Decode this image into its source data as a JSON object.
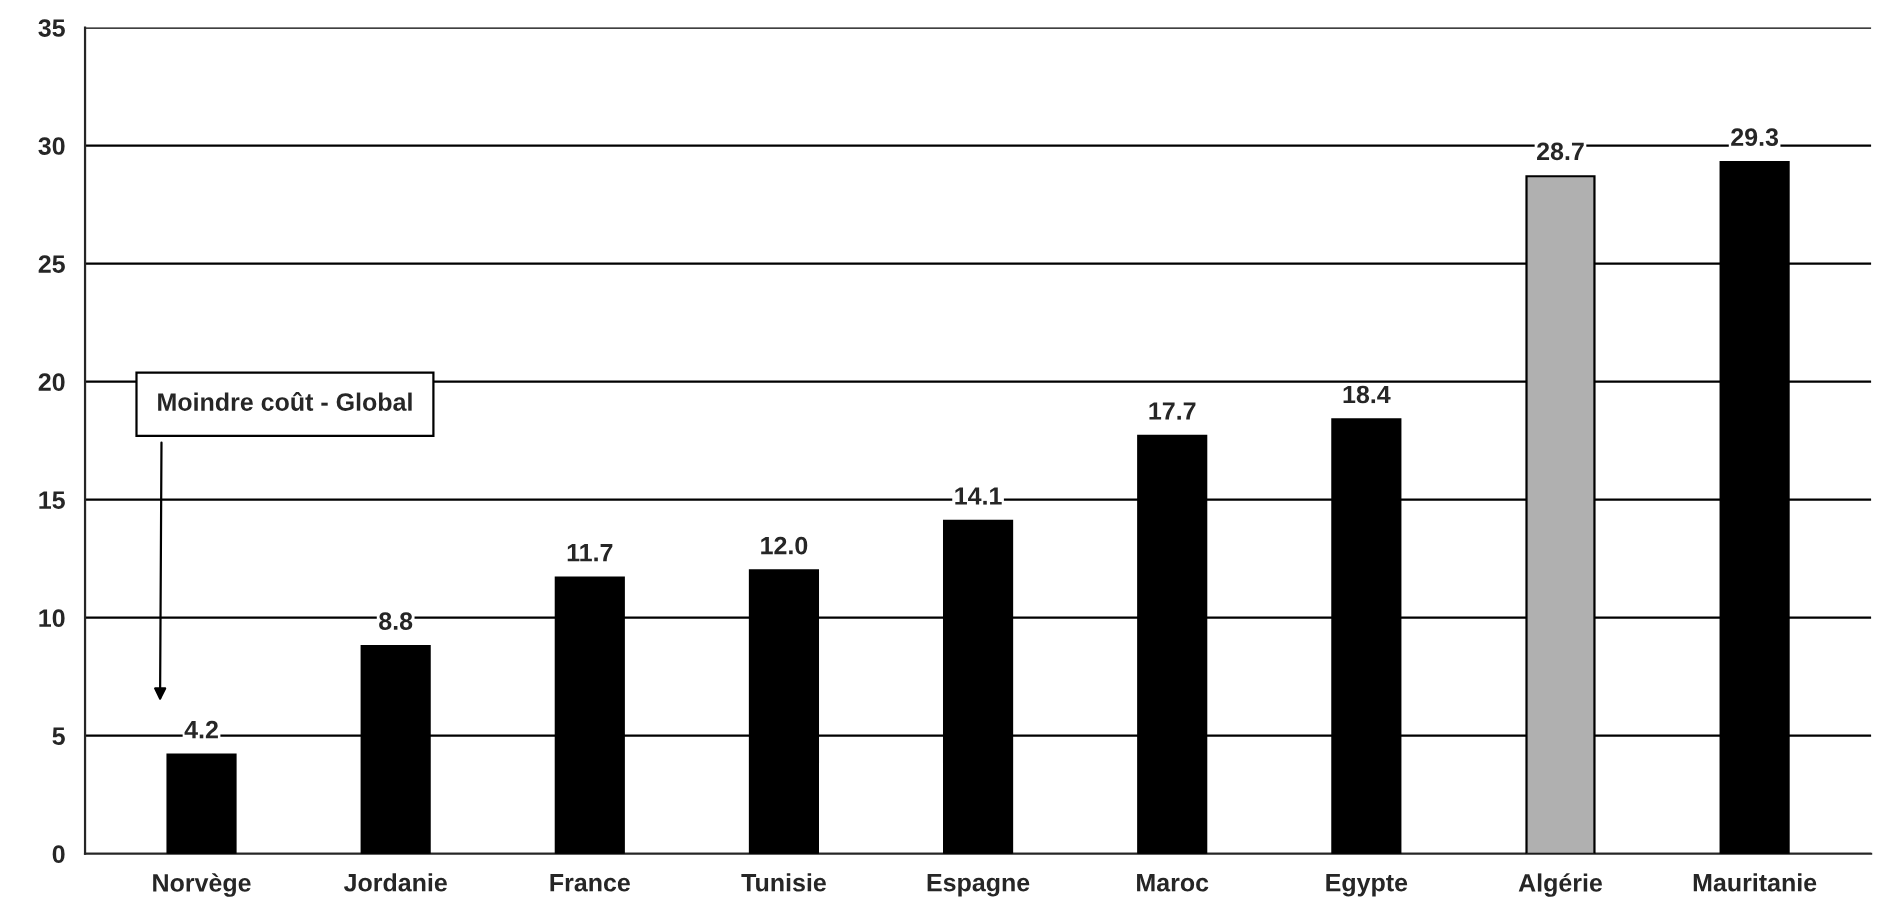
{
  "chart_data": {
    "type": "bar",
    "categories": [
      "Norvège",
      "Jordanie",
      "France",
      "Tunisie",
      "Espagne",
      "Maroc",
      "Egypte",
      "Algérie",
      "Mauritanie"
    ],
    "values": [
      4.2,
      8.8,
      11.7,
      12.0,
      14.1,
      17.7,
      18.4,
      28.7,
      29.3
    ],
    "colors": [
      "#000000",
      "#000000",
      "#000000",
      "#000000",
      "#000000",
      "#000000",
      "#000000",
      "#b0b0b0",
      "#000000"
    ],
    "ylim": [
      0,
      35
    ],
    "yticks": [
      0,
      5,
      10,
      15,
      20,
      25,
      30,
      35
    ],
    "grid": "y",
    "value_labels": [
      "4.2",
      "8.8",
      "11.7",
      "12.0",
      "14.1",
      "17.7",
      "18.4",
      "28.7",
      "29.3"
    ],
    "annotations": [
      "Moindre coût - Global"
    ]
  }
}
